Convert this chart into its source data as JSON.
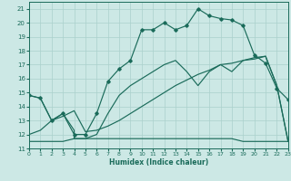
{
  "xlabel": "Humidex (Indice chaleur)",
  "bg_color": "#cce8e5",
  "grid_color": "#aad0cc",
  "line_color": "#1a6b5a",
  "xlim": [
    0,
    23
  ],
  "ylim": [
    11,
    21.5
  ],
  "xtick_vals": [
    0,
    1,
    2,
    3,
    4,
    5,
    6,
    7,
    8,
    9,
    10,
    11,
    12,
    13,
    14,
    15,
    16,
    17,
    18,
    19,
    20,
    21,
    22,
    23
  ],
  "ytick_vals": [
    11,
    12,
    13,
    14,
    15,
    16,
    17,
    18,
    19,
    20,
    21
  ],
  "main_x": [
    0,
    1,
    2,
    3,
    4,
    5,
    6,
    7,
    8,
    9,
    10,
    11,
    12,
    13,
    14,
    15,
    16,
    17,
    18,
    19,
    20,
    21,
    22,
    23
  ],
  "main_y": [
    14.8,
    14.6,
    13.0,
    13.5,
    12.0,
    12.0,
    13.5,
    15.8,
    16.7,
    17.3,
    19.5,
    19.5,
    20.0,
    19.5,
    19.8,
    21.0,
    20.5,
    20.3,
    20.2,
    19.8,
    17.7,
    17.1,
    15.3,
    14.5
  ],
  "flat_x": [
    0,
    1,
    2,
    3,
    4,
    5,
    6,
    7,
    8,
    9,
    10,
    11,
    12,
    13,
    14,
    15,
    16,
    17,
    18,
    19,
    20,
    21,
    22,
    23
  ],
  "flat_y": [
    11.5,
    11.5,
    11.5,
    11.5,
    11.7,
    11.7,
    11.7,
    11.7,
    11.7,
    11.7,
    11.7,
    11.7,
    11.7,
    11.7,
    11.7,
    11.7,
    11.7,
    11.7,
    11.7,
    11.5,
    11.5,
    11.5,
    11.5,
    11.5
  ],
  "diag_x": [
    0,
    1,
    2,
    3,
    4,
    5,
    6,
    7,
    8,
    9,
    10,
    11,
    12,
    13,
    14,
    15,
    16,
    17,
    18,
    19,
    20,
    21,
    22,
    23
  ],
  "diag_y": [
    12.0,
    12.3,
    13.0,
    13.3,
    13.7,
    12.2,
    12.3,
    12.6,
    13.0,
    13.5,
    14.0,
    14.5,
    15.0,
    15.5,
    15.9,
    16.3,
    16.6,
    17.0,
    17.1,
    17.3,
    17.4,
    17.6,
    15.5,
    11.5
  ],
  "env_x": [
    0,
    1,
    2,
    3,
    4,
    4,
    5,
    6,
    7,
    8,
    9,
    10,
    11,
    12,
    13,
    14,
    15,
    16,
    17,
    18,
    19,
    20,
    21,
    22,
    23
  ],
  "env_y": [
    14.8,
    14.6,
    13.0,
    13.5,
    12.3,
    11.7,
    11.7,
    12.0,
    13.5,
    14.8,
    15.5,
    16.0,
    16.5,
    17.0,
    17.3,
    16.5,
    15.5,
    16.5,
    17.0,
    16.5,
    17.3,
    17.5,
    17.6,
    15.5,
    11.5
  ]
}
